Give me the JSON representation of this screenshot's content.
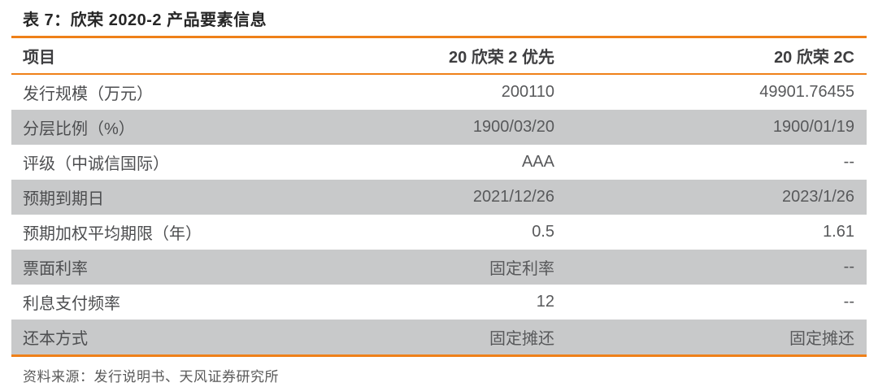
{
  "table": {
    "title": "表 7：欣荣 2020-2 产品要素信息",
    "columns": [
      "项目",
      "20 欣荣 2 优先",
      "20 欣荣 2C"
    ],
    "rows": [
      {
        "label": "发行规模（万元）",
        "senior": "200110",
        "c2": "49901.76455"
      },
      {
        "label": "分层比例（%）",
        "senior": "1900/03/20",
        "c2": "1900/01/19"
      },
      {
        "label": "评级（中诚信国际）",
        "senior": "AAA",
        "c2": "--"
      },
      {
        "label": "预期到期日",
        "senior": "2021/12/26",
        "c2": "2023/1/26"
      },
      {
        "label": "预期加权平均期限（年）",
        "senior": "0.5",
        "c2": "1.61"
      },
      {
        "label": "票面利率",
        "senior": "固定利率",
        "c2": "--"
      },
      {
        "label": "利息支付频率",
        "senior": "12",
        "c2": "--"
      },
      {
        "label": "还本方式",
        "senior": "固定摊还",
        "c2": "固定摊还"
      }
    ],
    "source": "资料来源：发行说明书、天风证券研究所"
  },
  "colors": {
    "accent_orange": "#EF8019",
    "stripe_gray": "#C8C9CA",
    "title_text": "#262626",
    "header_text": "#3E3E40",
    "label_text": "#4D4E50",
    "value_text": "#58595B",
    "source_text": "#595959"
  }
}
